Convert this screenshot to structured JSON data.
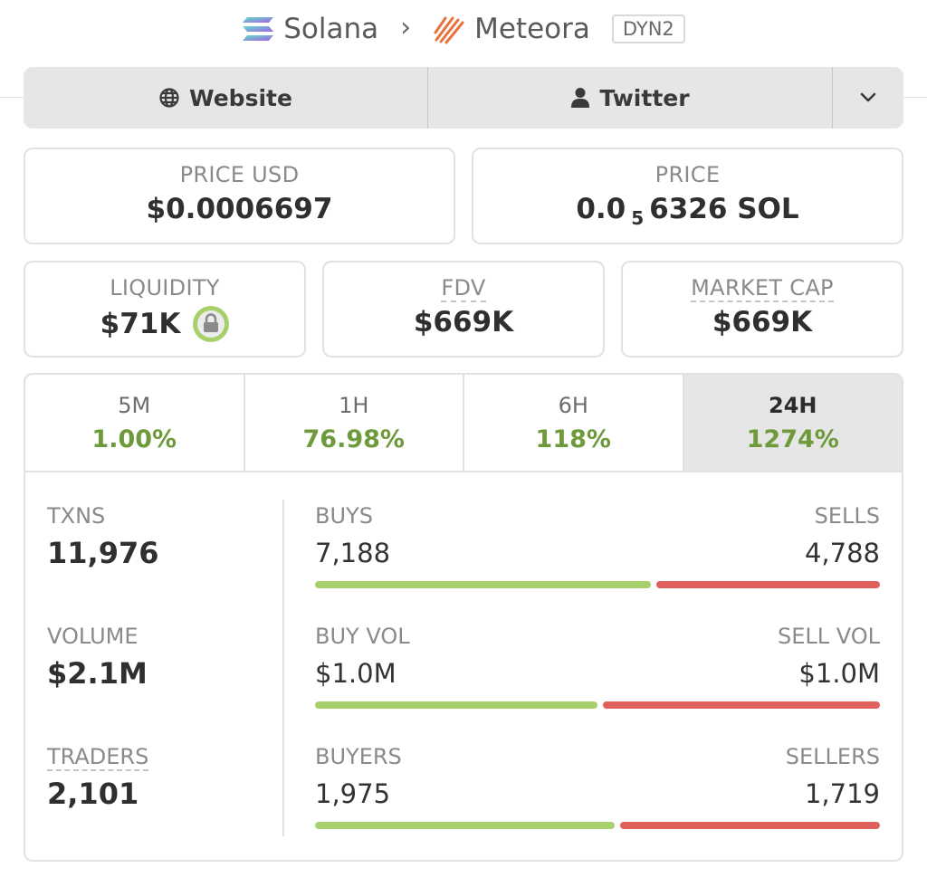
{
  "breadcrumb": {
    "chain": "Solana",
    "dex": "Meteora",
    "badge": "DYN2"
  },
  "links": {
    "website": "Website",
    "twitter": "Twitter"
  },
  "price_usd": {
    "label": "PRICE USD",
    "value": "$0.0006697"
  },
  "price": {
    "label": "PRICE",
    "prefix": "0.0",
    "sub": "5",
    "suffix": "6326 SOL"
  },
  "liquidity": {
    "label": "LIQUIDITY",
    "value": "$71K"
  },
  "fdv": {
    "label": "FDV",
    "value": "$669K"
  },
  "market_cap": {
    "label": "MARKET CAP",
    "value": "$669K"
  },
  "tabs": [
    {
      "label": "5M",
      "value": "1.00%"
    },
    {
      "label": "1H",
      "value": "76.98%"
    },
    {
      "label": "6H",
      "value": "118%"
    },
    {
      "label": "24H",
      "value": "1274%"
    }
  ],
  "txns": {
    "label": "TXNS",
    "value": "11,976"
  },
  "volume": {
    "label": "VOLUME",
    "value": "$2.1M"
  },
  "traders": {
    "label": "TRADERS",
    "value": "2,101"
  },
  "buys": {
    "left_label": "BUYS",
    "right_label": "SELLS",
    "left_value": "7,188",
    "right_value": "4,788",
    "left_fraction": 0.6
  },
  "vol": {
    "left_label": "BUY VOL",
    "right_label": "SELL VOL",
    "left_value": "$1.0M",
    "right_value": "$1.0M",
    "left_fraction": 0.505
  },
  "makers": {
    "left_label": "BUYERS",
    "right_label": "SELLERS",
    "left_value": "1,975",
    "right_value": "1,719",
    "left_fraction": 0.535
  },
  "colors": {
    "buy": "#a7cf6b",
    "sell": "#e0605c",
    "positive": "#6e9a3c"
  }
}
